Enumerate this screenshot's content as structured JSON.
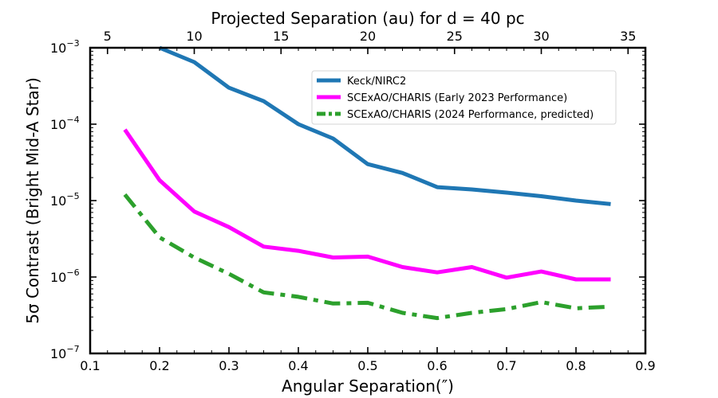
{
  "chart_data": {
    "type": "line",
    "xlabel": "Angular Separation(″)",
    "ylabel": "5σ Contrast (Bright Mid-A Star)",
    "top_xlabel": "Projected Separation (au) for d = 40 pc",
    "xlim": [
      0.1,
      0.9
    ],
    "ylim": [
      1e-07,
      0.001
    ],
    "yscale": "log",
    "top_xlim": [
      4,
      36
    ],
    "x_ticks": [
      "0.1",
      "0.2",
      "0.3",
      "0.4",
      "0.5",
      "0.6",
      "0.7",
      "0.8",
      "0.9"
    ],
    "top_ticks": [
      "5",
      "10",
      "15",
      "20",
      "25",
      "30",
      "35"
    ],
    "y_ticks": [
      {
        "base": "10",
        "exp": "−3"
      },
      {
        "base": "10",
        "exp": "−4"
      },
      {
        "base": "10",
        "exp": "−5"
      },
      {
        "base": "10",
        "exp": "−6"
      },
      {
        "base": "10",
        "exp": "−7"
      }
    ],
    "grid": false,
    "legend_position": "upper-right",
    "series": [
      {
        "name": "Keck/NIRC2",
        "color": "#1f77b4",
        "style": "solid",
        "x": [
          0.2,
          0.25,
          0.3,
          0.35,
          0.4,
          0.45,
          0.5,
          0.55,
          0.6,
          0.65,
          0.7,
          0.75,
          0.8,
          0.85
        ],
        "y": [
          0.001,
          0.00065,
          0.0003,
          0.0002,
          0.0001,
          6.5e-05,
          3e-05,
          2.3e-05,
          1.5e-05,
          1.4e-05,
          1.27e-05,
          1.14e-05,
          1e-05,
          9e-06
        ]
      },
      {
        "name": "SCExAO/CHARIS (Early 2023 Performance)",
        "color": "#ff00ff",
        "style": "solid",
        "x": [
          0.15,
          0.2,
          0.25,
          0.3,
          0.35,
          0.4,
          0.45,
          0.5,
          0.55,
          0.6,
          0.65,
          0.7,
          0.75,
          0.8,
          0.85
        ],
        "y": [
          8.5e-05,
          1.85e-05,
          7.2e-06,
          4.5e-06,
          2.5e-06,
          2.2e-06,
          1.8e-06,
          1.85e-06,
          1.35e-06,
          1.15e-06,
          1.35e-06,
          9.8e-07,
          1.18e-06,
          9.3e-07,
          9.3e-07
        ]
      },
      {
        "name": "SCExAO/CHARIS (2024 Performance, predicted)",
        "color": "#2ca02c",
        "style": "dashdot",
        "x": [
          0.15,
          0.2,
          0.25,
          0.3,
          0.35,
          0.4,
          0.45,
          0.5,
          0.55,
          0.6,
          0.65,
          0.7,
          0.75,
          0.8,
          0.85
        ],
        "y": [
          1.2e-05,
          3.3e-06,
          1.8e-06,
          1.1e-06,
          6.3e-07,
          5.5e-07,
          4.5e-07,
          4.6e-07,
          3.4e-07,
          2.9e-07,
          3.4e-07,
          3.8e-07,
          4.7e-07,
          3.9e-07,
          4.1e-07
        ]
      }
    ]
  }
}
